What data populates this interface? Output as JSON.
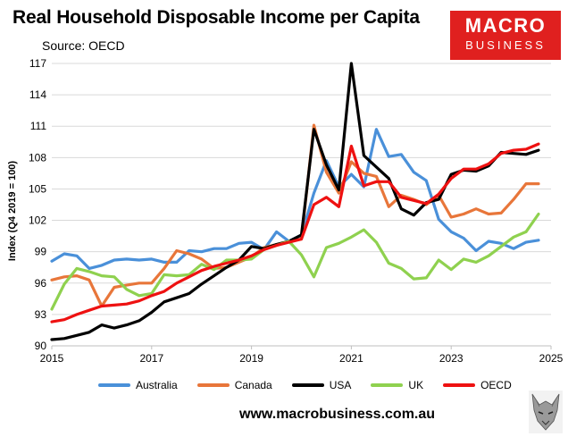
{
  "header": {
    "title": "Real Household Disposable Income per Capita",
    "subtitle": "Source: OECD"
  },
  "logo": {
    "line1": "MACRO",
    "line2": "BUSINESS",
    "color": "#e0201f"
  },
  "footer": {
    "website": "www.macrobusiness.com.au",
    "icon": "wolf-icon"
  },
  "chart_data": {
    "type": "line",
    "title": "Real Household Disposable Income per Capita",
    "ylabel": "Index (Q4 2019 = 100)",
    "xlabel": "",
    "xlim": [
      2015,
      2025
    ],
    "ylim": [
      90,
      117
    ],
    "xticks": [
      "2015",
      "2017",
      "2019",
      "2021",
      "2023",
      "2025"
    ],
    "yticks": [
      "90",
      "93",
      "96",
      "99",
      "102",
      "105",
      "108",
      "111",
      "114",
      "117"
    ],
    "grid": "horizontal",
    "legend_position": "bottom",
    "x": [
      2015.0,
      2015.25,
      2015.5,
      2015.75,
      2016.0,
      2016.25,
      2016.5,
      2016.75,
      2017.0,
      2017.25,
      2017.5,
      2017.75,
      2018.0,
      2018.25,
      2018.5,
      2018.75,
      2019.0,
      2019.25,
      2019.5,
      2019.75,
      2020.0,
      2020.25,
      2020.5,
      2020.75,
      2021.0,
      2021.25,
      2021.5,
      2021.75,
      2022.0,
      2022.25,
      2022.5,
      2022.75,
      2023.0,
      2023.25,
      2023.5,
      2023.75,
      2024.0,
      2024.25,
      2024.5,
      2024.75
    ],
    "series": [
      {
        "name": "Australia",
        "color": "#4a90d9",
        "values": [
          98.1,
          98.8,
          98.6,
          97.4,
          97.7,
          98.2,
          98.3,
          98.2,
          98.3,
          98.0,
          98.0,
          99.1,
          99.0,
          99.3,
          99.3,
          99.8,
          99.9,
          99.2,
          100.9,
          100.0,
          100.6,
          104.6,
          107.7,
          105.2,
          106.4,
          105.2,
          110.7,
          108.1,
          108.3,
          106.6,
          105.8,
          102.1,
          100.9,
          100.3,
          99.1,
          100.0,
          99.8,
          99.3,
          99.9,
          100.1
        ]
      },
      {
        "name": "Canada",
        "color": "#e8763a",
        "values": [
          96.3,
          96.6,
          96.7,
          96.3,
          93.8,
          95.6,
          95.8,
          96.0,
          96.0,
          97.4,
          99.1,
          98.8,
          98.3,
          97.4,
          97.5,
          98.0,
          98.5,
          99.4,
          99.7,
          100.0,
          100.2,
          111.1,
          106.6,
          104.6,
          107.6,
          106.5,
          106.2,
          103.3,
          104.4,
          104.0,
          103.5,
          104.4,
          102.3,
          102.6,
          103.1,
          102.6,
          102.7,
          104.0,
          105.5,
          105.5
        ]
      },
      {
        "name": "USA",
        "color": "#000000",
        "values": [
          90.6,
          90.7,
          91.0,
          91.3,
          92.0,
          91.7,
          92.0,
          92.4,
          93.2,
          94.2,
          94.6,
          95.0,
          95.9,
          96.7,
          97.5,
          98.2,
          99.5,
          99.3,
          99.7,
          100.0,
          100.6,
          110.7,
          107.3,
          104.9,
          117.0,
          108.2,
          107.1,
          106.0,
          103.1,
          102.5,
          103.7,
          104.0,
          106.4,
          106.8,
          106.7,
          107.2,
          108.5,
          108.4,
          108.3,
          108.7
        ]
      },
      {
        "name": "UK",
        "color": "#8fd14f",
        "values": [
          93.5,
          95.9,
          97.4,
          97.1,
          96.7,
          96.6,
          95.4,
          94.8,
          95.0,
          96.8,
          96.7,
          96.8,
          97.8,
          97.3,
          98.2,
          98.2,
          98.3,
          99.2,
          99.6,
          100.0,
          98.7,
          96.6,
          99.4,
          99.8,
          100.4,
          101.1,
          99.9,
          97.9,
          97.4,
          96.4,
          96.5,
          98.2,
          97.3,
          98.3,
          98.0,
          98.6,
          99.5,
          100.4,
          100.9,
          102.6
        ]
      },
      {
        "name": "OECD",
        "color": "#ee1111",
        "values": [
          92.3,
          92.5,
          93.0,
          93.4,
          93.8,
          93.9,
          94.0,
          94.3,
          94.8,
          95.2,
          96.0,
          96.6,
          97.2,
          97.6,
          97.9,
          98.2,
          98.6,
          99.2,
          99.6,
          99.9,
          100.2,
          103.5,
          104.2,
          103.3,
          109.1,
          105.3,
          105.7,
          105.7,
          104.2,
          103.9,
          103.6,
          104.5,
          106.0,
          106.9,
          106.9,
          107.4,
          108.4,
          108.7,
          108.8,
          109.3
        ]
      }
    ]
  }
}
